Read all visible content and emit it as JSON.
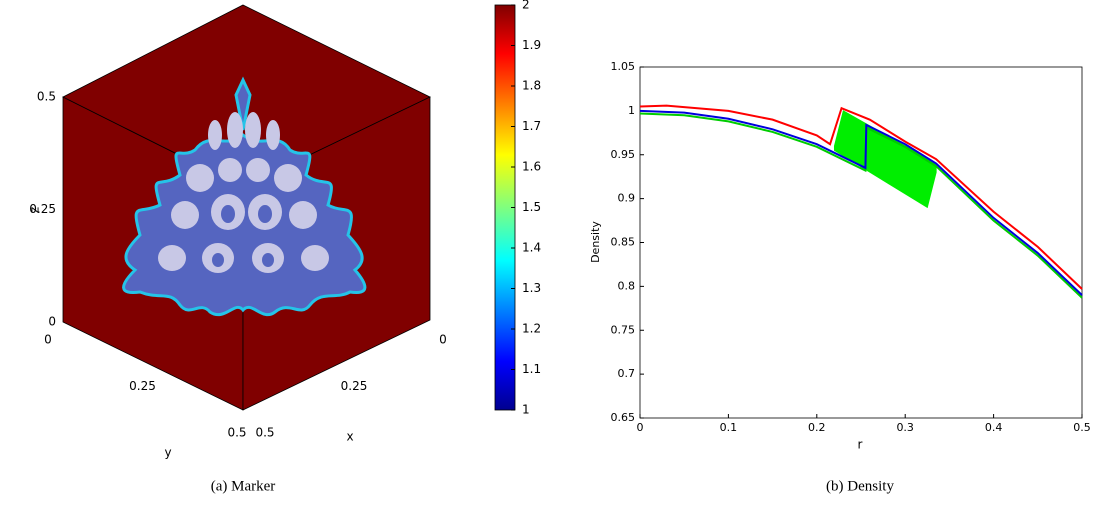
{
  "chart_data": [
    {
      "type": "cube",
      "xlabel": "x",
      "ylabel": "y",
      "zlabel": "z",
      "xlim": [
        0,
        0.5
      ],
      "ylim": [
        0,
        0.5
      ],
      "zlim": [
        0,
        0.5
      ],
      "xticks": [
        0,
        0.25,
        0.5
      ],
      "yticks": [
        0,
        0.25,
        0.5
      ],
      "zticks": [
        0,
        0.25,
        0.5
      ],
      "colorbar": {
        "lim": [
          1,
          2
        ],
        "ticks": [
          1,
          1.1,
          1.2,
          1.3,
          1.4,
          1.5,
          1.6,
          1.7,
          1.8,
          1.9,
          2
        ]
      },
      "caption": "(a) Marker"
    },
    {
      "type": "line",
      "xlabel": "r",
      "ylabel": "Density",
      "xlim": [
        0,
        0.5
      ],
      "ylim": [
        0.65,
        1.05
      ],
      "xticks": [
        0,
        0.1,
        0.2,
        0.3,
        0.4,
        0.5
      ],
      "yticks": [
        0.65,
        0.7,
        0.75,
        0.8,
        0.85,
        0.9,
        0.95,
        1,
        1.05
      ],
      "series": [
        {
          "color": "#00ee00",
          "fill": true,
          "x": [
            0.22,
            0.23,
            0.335,
            0.335,
            0.325,
            0.22
          ],
          "values": [
            0.96,
            1.0,
            0.94,
            0.93,
            0.89,
            0.955
          ]
        },
        {
          "color": "#00cc00",
          "x": [
            0,
            0.05,
            0.1,
            0.15,
            0.2,
            0.255,
            0.256,
            0.3,
            0.335,
            0.4,
            0.45,
            0.5
          ],
          "values": [
            0.997,
            0.995,
            0.988,
            0.976,
            0.959,
            0.932,
            0.981,
            0.959,
            0.937,
            0.875,
            0.835,
            0.787
          ]
        },
        {
          "color": "#ff0000",
          "x": [
            0,
            0.03,
            0.1,
            0.15,
            0.2,
            0.215,
            0.228,
            0.26,
            0.3,
            0.335,
            0.4,
            0.45,
            0.5
          ],
          "values": [
            1.005,
            1.006,
            1.0,
            0.99,
            0.972,
            0.962,
            1.003,
            0.99,
            0.965,
            0.945,
            0.885,
            0.845,
            0.797
          ]
        },
        {
          "color": "#0000dd",
          "x": [
            0,
            0.05,
            0.1,
            0.15,
            0.2,
            0.255,
            0.256,
            0.3,
            0.335,
            0.4,
            0.45,
            0.5
          ],
          "values": [
            1.0,
            0.998,
            0.991,
            0.979,
            0.962,
            0.935,
            0.984,
            0.962,
            0.94,
            0.878,
            0.838,
            0.79
          ]
        }
      ],
      "caption": "(b) Density"
    }
  ]
}
